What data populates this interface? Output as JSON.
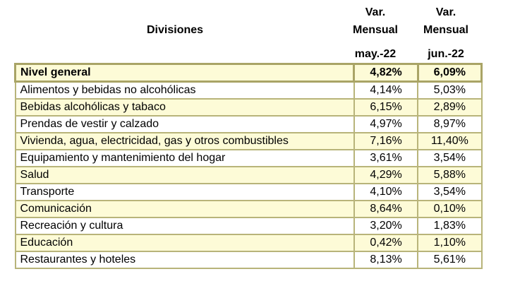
{
  "header": {
    "divisiones_label": "Divisiones",
    "col1_line1": "Var.",
    "col1_line2": "Mensual",
    "col1_period": "may.-22",
    "col2_line1": "Var.",
    "col2_line2": "Mensual",
    "col2_period": "jun.-22"
  },
  "rows": [
    {
      "name": "Nivel general",
      "may": "4,82%",
      "jun": "6,09%"
    },
    {
      "name": "Alimentos y bebidas no alcohólicas",
      "may": "4,14%",
      "jun": "5,03%"
    },
    {
      "name": "Bebidas alcohólicas y tabaco",
      "may": "6,15%",
      "jun": "2,89%"
    },
    {
      "name": "Prendas de vestir y calzado",
      "may": "4,97%",
      "jun": "8,97%"
    },
    {
      "name": "Vivienda, agua, electricidad, gas y otros combustibles",
      "may": "7,16%",
      "jun": "11,40%"
    },
    {
      "name": "Equipamiento y mantenimiento del hogar",
      "may": "3,61%",
      "jun": "3,54%"
    },
    {
      "name": "Salud",
      "may": "4,29%",
      "jun": "5,88%"
    },
    {
      "name": "Transporte",
      "may": "4,10%",
      "jun": "3,54%"
    },
    {
      "name": "Comunicación",
      "may": "8,64%",
      "jun": "0,10%"
    },
    {
      "name": "Recreación y cultura",
      "may": "3,20%",
      "jun": "1,83%"
    },
    {
      "name": "Educación",
      "may": "0,42%",
      "jun": "1,10%"
    },
    {
      "name": "Restaurantes y hoteles",
      "may": "8,13%",
      "jun": "5,61%"
    }
  ],
  "colors": {
    "row_highlight": "#fdfbd7",
    "border": "#b8b47a"
  }
}
